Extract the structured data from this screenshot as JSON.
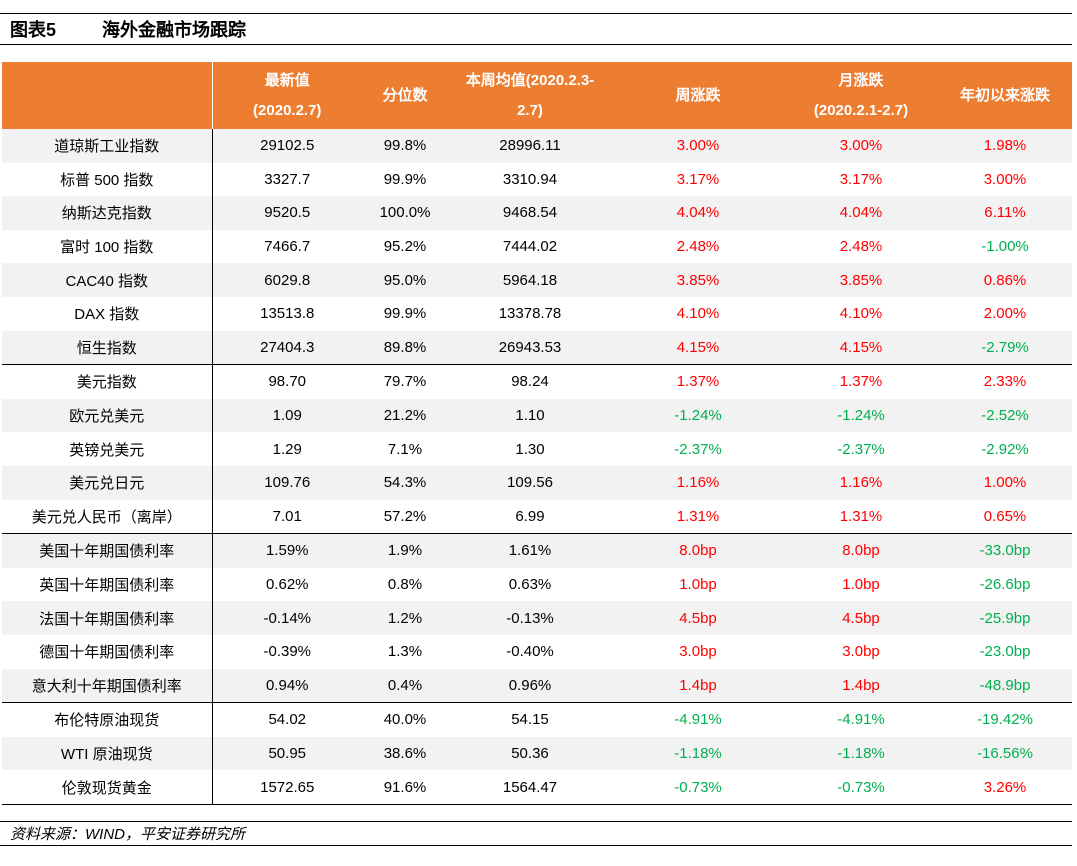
{
  "title": {
    "figure_label": "图表5",
    "text": "海外金融市场跟踪"
  },
  "header": {
    "col0": "",
    "latest_l1": "最新值",
    "latest_l2": "(2020.2.7)",
    "percentile": "分位数",
    "week_avg_l1": "本周均值(2020.2.3-",
    "week_avg_l2": "2.7)",
    "weekly_change": "周涨跌",
    "monthly_l1": "月涨跌",
    "monthly_l2": "(2020.2.1-2.7)",
    "ytd": "年初以来涨跌"
  },
  "rows": [
    {
      "name": "道琼斯工业指数",
      "latest": "29102.5",
      "pct": "99.8%",
      "avg": "28996.11",
      "week": "3.00%",
      "month": "3.00%",
      "ytd": "1.98%",
      "week_dir": "up",
      "month_dir": "up",
      "ytd_dir": "up"
    },
    {
      "name": "标普 500 指数",
      "latest": "3327.7",
      "pct": "99.9%",
      "avg": "3310.94",
      "week": "3.17%",
      "month": "3.17%",
      "ytd": "3.00%",
      "week_dir": "up",
      "month_dir": "up",
      "ytd_dir": "up"
    },
    {
      "name": "纳斯达克指数",
      "latest": "9520.5",
      "pct": "100.0%",
      "avg": "9468.54",
      "week": "4.04%",
      "month": "4.04%",
      "ytd": "6.11%",
      "week_dir": "up",
      "month_dir": "up",
      "ytd_dir": "up"
    },
    {
      "name": "富时 100 指数",
      "latest": "7466.7",
      "pct": "95.2%",
      "avg": "7444.02",
      "week": "2.48%",
      "month": "2.48%",
      "ytd": "-1.00%",
      "week_dir": "up",
      "month_dir": "up",
      "ytd_dir": "down"
    },
    {
      "name": "CAC40 指数",
      "latest": "6029.8",
      "pct": "95.0%",
      "avg": "5964.18",
      "week": "3.85%",
      "month": "3.85%",
      "ytd": "0.86%",
      "week_dir": "up",
      "month_dir": "up",
      "ytd_dir": "up"
    },
    {
      "name": "DAX 指数",
      "latest": "13513.8",
      "pct": "99.9%",
      "avg": "13378.78",
      "week": "4.10%",
      "month": "4.10%",
      "ytd": "2.00%",
      "week_dir": "up",
      "month_dir": "up",
      "ytd_dir": "up"
    },
    {
      "name": "恒生指数",
      "latest": "27404.3",
      "pct": "89.8%",
      "avg": "26943.53",
      "week": "4.15%",
      "month": "4.15%",
      "ytd": "-2.79%",
      "week_dir": "up",
      "month_dir": "up",
      "ytd_dir": "down"
    },
    {
      "name": "美元指数",
      "latest": "98.70",
      "pct": "79.7%",
      "avg": "98.24",
      "week": "1.37%",
      "month": "1.37%",
      "ytd": "2.33%",
      "week_dir": "up",
      "month_dir": "up",
      "ytd_dir": "up"
    },
    {
      "name": "欧元兑美元",
      "latest": "1.09",
      "pct": "21.2%",
      "avg": "1.10",
      "week": "-1.24%",
      "month": "-1.24%",
      "ytd": "-2.52%",
      "week_dir": "down",
      "month_dir": "down",
      "ytd_dir": "down"
    },
    {
      "name": "英镑兑美元",
      "latest": "1.29",
      "pct": "7.1%",
      "avg": "1.30",
      "week": "-2.37%",
      "month": "-2.37%",
      "ytd": "-2.92%",
      "week_dir": "down",
      "month_dir": "down",
      "ytd_dir": "down"
    },
    {
      "name": "美元兑日元",
      "latest": "109.76",
      "pct": "54.3%",
      "avg": "109.56",
      "week": "1.16%",
      "month": "1.16%",
      "ytd": "1.00%",
      "week_dir": "up",
      "month_dir": "up",
      "ytd_dir": "up"
    },
    {
      "name": "美元兑人民币（离岸）",
      "latest": "7.01",
      "pct": "57.2%",
      "avg": "6.99",
      "week": "1.31%",
      "month": "1.31%",
      "ytd": "0.65%",
      "week_dir": "up",
      "month_dir": "up",
      "ytd_dir": "up"
    },
    {
      "name": "美国十年期国债利率",
      "latest": "1.59%",
      "pct": "1.9%",
      "avg": "1.61%",
      "week": "8.0bp",
      "month": "8.0bp",
      "ytd": "-33.0bp",
      "week_dir": "up",
      "month_dir": "up",
      "ytd_dir": "down"
    },
    {
      "name": "英国十年期国债利率",
      "latest": "0.62%",
      "pct": "0.8%",
      "avg": "0.63%",
      "week": "1.0bp",
      "month": "1.0bp",
      "ytd": "-26.6bp",
      "week_dir": "up",
      "month_dir": "up",
      "ytd_dir": "down"
    },
    {
      "name": "法国十年期国债利率",
      "latest": "-0.14%",
      "pct": "1.2%",
      "avg": "-0.13%",
      "week": "4.5bp",
      "month": "4.5bp",
      "ytd": "-25.9bp",
      "week_dir": "up",
      "month_dir": "up",
      "ytd_dir": "down"
    },
    {
      "name": "德国十年期国债利率",
      "latest": "-0.39%",
      "pct": "1.3%",
      "avg": "-0.40%",
      "week": "3.0bp",
      "month": "3.0bp",
      "ytd": "-23.0bp",
      "week_dir": "up",
      "month_dir": "up",
      "ytd_dir": "down"
    },
    {
      "name": "意大利十年期国债利率",
      "latest": "0.94%",
      "pct": "0.4%",
      "avg": "0.96%",
      "week": "1.4bp",
      "month": "1.4bp",
      "ytd": "-48.9bp",
      "week_dir": "up",
      "month_dir": "up",
      "ytd_dir": "down"
    },
    {
      "name": "布伦特原油现货",
      "latest": "54.02",
      "pct": "40.0%",
      "avg": "54.15",
      "week": "-4.91%",
      "month": "-4.91%",
      "ytd": "-19.42%",
      "week_dir": "down",
      "month_dir": "down",
      "ytd_dir": "down"
    },
    {
      "name": "WTI 原油现货",
      "latest": "50.95",
      "pct": "38.6%",
      "avg": "50.36",
      "week": "-1.18%",
      "month": "-1.18%",
      "ytd": "-16.56%",
      "week_dir": "down",
      "month_dir": "down",
      "ytd_dir": "down"
    },
    {
      "name": "伦敦现货黄金",
      "latest": "1572.65",
      "pct": "91.6%",
      "avg": "1564.47",
      "week": "-0.73%",
      "month": "-0.73%",
      "ytd": "3.26%",
      "week_dir": "down",
      "month_dir": "down",
      "ytd_dir": "up"
    }
  ],
  "source": "资料来源：WIND，平安证券研究所",
  "colors": {
    "header_bg": "#ed7d31",
    "up": "#ff0000",
    "down": "#00b050",
    "stripe": "#f2f2f2"
  }
}
